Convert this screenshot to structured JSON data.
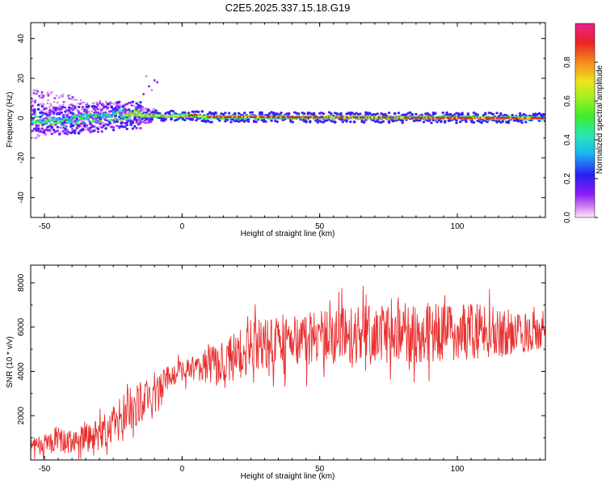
{
  "title": "C2E5.2025.337.15.18.G19",
  "colors": {
    "snr_line": "#e8302f",
    "axis": "#000000",
    "background": "#ffffff"
  },
  "chart_data": [
    {
      "type": "heatmap",
      "name": "spectrogram",
      "xlabel": "Height of straight line (km)",
      "ylabel": "Frequency (Hz)",
      "xlim": [
        -55,
        132
      ],
      "ylim": [
        -50,
        48
      ],
      "x_ticks": [
        "-50",
        "0",
        "50",
        "100"
      ],
      "y_ticks": [
        "40",
        "20",
        "0",
        "-20",
        "-40"
      ],
      "colorbar": {
        "label": "Normalized spectral amplitude",
        "range": [
          0,
          1
        ],
        "ticks": [
          "0.0",
          "0.2",
          "0.4",
          "0.6",
          "0.8"
        ]
      },
      "ridge": [
        {
          "x": -55,
          "freq": 0.0
        },
        {
          "x": -45,
          "freq": -1.5
        },
        {
          "x": -30,
          "freq": 0.0
        },
        {
          "x": -22,
          "freq": 1.5
        },
        {
          "x": 0,
          "freq": 1.0
        },
        {
          "x": 5,
          "freq": 1.5
        },
        {
          "x": 8,
          "freq": 0.5
        },
        {
          "x": 132,
          "freq": 0.0
        }
      ]
    },
    {
      "type": "line",
      "name": "snr",
      "xlabel": "Height of straight line (km)",
      "ylabel": "SNR (10 * v/v)",
      "xlim": [
        -55,
        132
      ],
      "ylim": [
        0,
        8800
      ],
      "x_ticks": [
        "-50",
        "0",
        "50",
        "100"
      ],
      "y_ticks": [
        "8000",
        "6000",
        "4000",
        "2000"
      ],
      "series": [
        {
          "name": "SNR",
          "envelope": [
            {
              "x": -55,
              "mean": 600,
              "spread": 500
            },
            {
              "x": -40,
              "mean": 900,
              "spread": 700
            },
            {
              "x": -30,
              "mean": 1100,
              "spread": 900
            },
            {
              "x": -20,
              "mean": 2200,
              "spread": 1200
            },
            {
              "x": -10,
              "mean": 3000,
              "spread": 1200
            },
            {
              "x": -5,
              "mean": 3800,
              "spread": 600
            },
            {
              "x": 5,
              "mean": 4200,
              "spread": 700
            },
            {
              "x": 15,
              "mean": 4300,
              "spread": 1400
            },
            {
              "x": 25,
              "mean": 5200,
              "spread": 1500
            },
            {
              "x": 50,
              "mean": 5500,
              "spread": 1600
            },
            {
              "x": 75,
              "mean": 5700,
              "spread": 1700
            },
            {
              "x": 100,
              "mean": 5800,
              "spread": 1700
            },
            {
              "x": 132,
              "mean": 5800,
              "spread": 1000
            }
          ]
        }
      ]
    }
  ]
}
